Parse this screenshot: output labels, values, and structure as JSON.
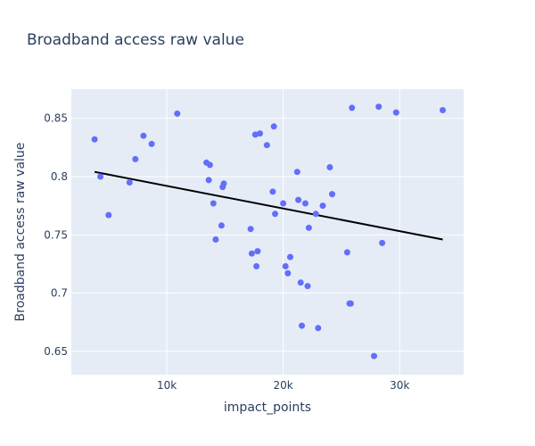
{
  "chart_data": {
    "type": "scatter",
    "title": "Broadband access raw value",
    "xlabel": "impact_points",
    "ylabel": "Broadband access raw value",
    "xlim": [
      1800,
      35500
    ],
    "ylim": [
      0.63,
      0.875
    ],
    "x_ticks": [
      {
        "value": 10000,
        "label": "10k"
      },
      {
        "value": 20000,
        "label": "20k"
      },
      {
        "value": 30000,
        "label": "30k"
      }
    ],
    "y_ticks": [
      {
        "value": 0.65,
        "label": "0.65"
      },
      {
        "value": 0.7,
        "label": "0.7"
      },
      {
        "value": 0.75,
        "label": "0.75"
      },
      {
        "value": 0.8,
        "label": "0.8"
      },
      {
        "value": 0.85,
        "label": "0.85"
      }
    ],
    "grid": true,
    "legend": "none",
    "colors": {
      "plot_bg": "#e5ecf6",
      "marker": "#636efa",
      "trendline": "#000000",
      "text": "#2a3f5f"
    },
    "series": [
      {
        "mode": "markers",
        "x": [
          3800,
          4300,
          5000,
          6800,
          7300,
          8000,
          8700,
          10900,
          13400,
          13600,
          13700,
          14000,
          14200,
          14700,
          14800,
          14900,
          17200,
          17300,
          17600,
          17700,
          17800,
          18000,
          18600,
          19100,
          19300,
          19200,
          20000,
          20200,
          20400,
          20600,
          21200,
          21300,
          21500,
          21600,
          21900,
          22100,
          22200,
          22800,
          23000,
          23400,
          24000,
          24200,
          25500,
          25700,
          25800,
          25900,
          27800,
          28200,
          28500,
          29700,
          33700
        ],
        "y": [
          0.832,
          0.8,
          0.767,
          0.795,
          0.815,
          0.835,
          0.828,
          0.854,
          0.812,
          0.797,
          0.81,
          0.777,
          0.746,
          0.758,
          0.791,
          0.794,
          0.755,
          0.734,
          0.836,
          0.723,
          0.736,
          0.837,
          0.827,
          0.787,
          0.768,
          0.843,
          0.777,
          0.723,
          0.717,
          0.731,
          0.804,
          0.78,
          0.709,
          0.672,
          0.777,
          0.706,
          0.756,
          0.768,
          0.67,
          0.775,
          0.808,
          0.785,
          0.735,
          0.691,
          0.691,
          0.859,
          0.646,
          0.86,
          0.743,
          0.855,
          0.857
        ]
      },
      {
        "mode": "lines",
        "x": [
          3800,
          33700
        ],
        "y": [
          0.804,
          0.746
        ]
      }
    ]
  }
}
